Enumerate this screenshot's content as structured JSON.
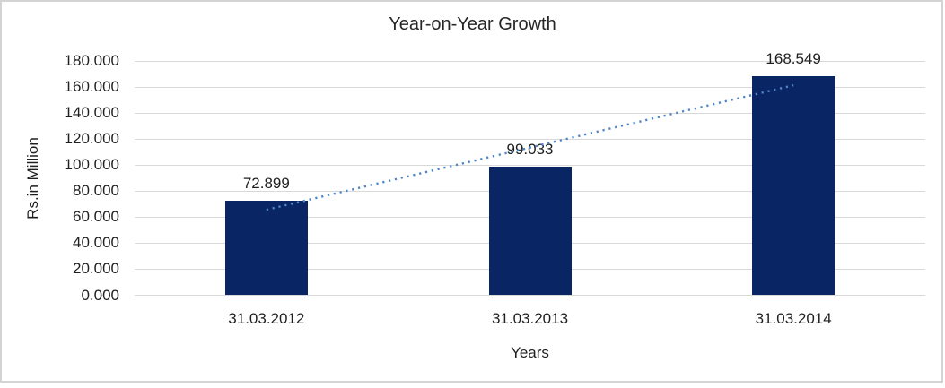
{
  "chart_data": {
    "type": "bar",
    "title": "Year-on-Year Growth",
    "xlabel": "Years",
    "ylabel": "Rs.in Million",
    "categories": [
      "31.03.2012",
      "31.03.2013",
      "31.03.2014"
    ],
    "values": [
      72.899,
      99.033,
      168.549
    ],
    "data_labels": [
      "72.899",
      "99.033",
      "168.549"
    ],
    "y_tick_values": [
      0,
      20,
      40,
      60,
      80,
      100,
      120,
      140,
      160,
      180
    ],
    "y_tick_labels": [
      "0.000",
      "20.000",
      "40.000",
      "60.000",
      "80.000",
      "100.000",
      "120.000",
      "140.000",
      "160.000",
      "180.000"
    ],
    "ylim": [
      0,
      180
    ],
    "grid": true,
    "legend": "none",
    "trendline": "linear",
    "colors": {
      "bar": "#0a2563",
      "trendline": "#4f86c6",
      "gridline": "#d9d9d9",
      "frame_border": "#d4d4d7",
      "text": "#1f1f1f",
      "background": "#ffffff"
    }
  }
}
